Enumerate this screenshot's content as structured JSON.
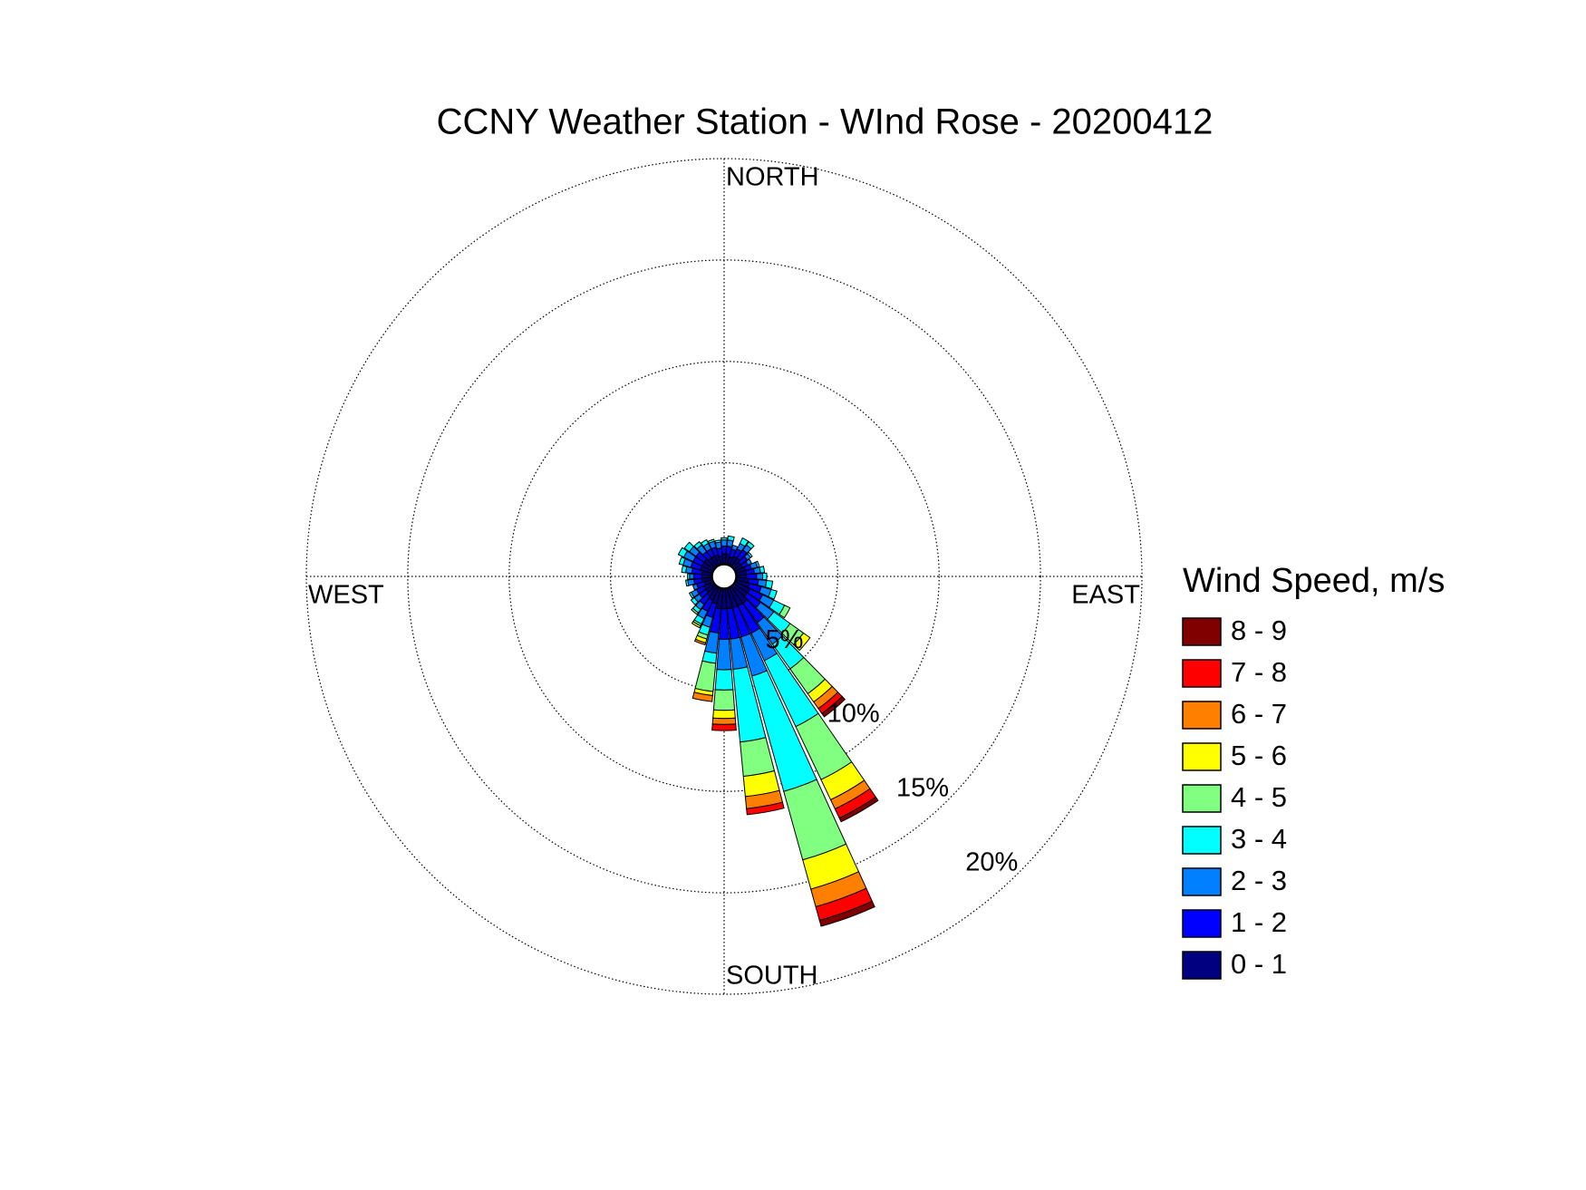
{
  "chart_data": {
    "type": "windrose",
    "title": "CCNY Weather Station - WInd Rose - 20200412",
    "direction_labels": [
      "NORTH",
      "EAST",
      "SOUTH",
      "WEST"
    ],
    "legend_title": "Wind Speed, m/s",
    "directions": [
      0,
      10,
      20,
      30,
      40,
      50,
      60,
      70,
      80,
      90,
      100,
      110,
      120,
      130,
      140,
      150,
      160,
      170,
      180,
      190,
      200,
      210,
      220,
      230,
      240,
      250,
      260,
      270,
      280,
      290,
      300,
      310,
      320,
      330,
      340,
      350
    ],
    "rlim": [
      0,
      20
    ],
    "rticks": [
      {
        "value": 5,
        "label": "5%"
      },
      {
        "value": 10,
        "label": "10%"
      },
      {
        "value": 15,
        "label": "15%"
      },
      {
        "value": 20,
        "label": "20%"
      }
    ],
    "series": [
      {
        "name": "0 - 1",
        "color": "#000080",
        "values": [
          0.5,
          0.5,
          0.4,
          0.5,
          0.5,
          0.4,
          0.4,
          0.5,
          0.5,
          0.5,
          0.6,
          0.7,
          0.8,
          0.8,
          1.0,
          1.0,
          1.0,
          1.0,
          1.0,
          1.0,
          0.8,
          0.7,
          0.6,
          0.5,
          0.5,
          0.4,
          0.5,
          0.5,
          0.5,
          0.6,
          0.6,
          0.6,
          0.5,
          0.5,
          0.5,
          0.4
        ]
      },
      {
        "name": "1 - 2",
        "color": "#0000ff",
        "values": [
          0.4,
          0.4,
          0.4,
          0.4,
          0.5,
          0.4,
          0.3,
          0.3,
          0.4,
          0.5,
          0.5,
          0.6,
          0.7,
          0.8,
          1.2,
          1.5,
          1.5,
          1.5,
          1.5,
          1.2,
          0.7,
          0.6,
          0.5,
          0.4,
          0.4,
          0.4,
          0.4,
          0.4,
          0.5,
          0.5,
          0.5,
          0.5,
          0.4,
          0.4,
          0.4,
          0.4
        ]
      },
      {
        "name": "2 - 3",
        "color": "#0080ff",
        "values": [
          0.3,
          0.3,
          0.2,
          0.3,
          0.3,
          0.2,
          0.2,
          0.3,
          0.3,
          0.3,
          0.4,
          0.5,
          0.6,
          0.8,
          1.3,
          1.5,
          2.0,
          1.5,
          1.5,
          1.0,
          0.5,
          0.4,
          0.3,
          0.3,
          0.3,
          0.2,
          0.3,
          0.2,
          0.3,
          0.4,
          0.5,
          0.4,
          0.4,
          0.3,
          0.3,
          0.3
        ]
      },
      {
        "name": "3 - 4",
        "color": "#00ffff",
        "values": [
          0.1,
          0.2,
          0,
          0.3,
          0.2,
          0.1,
          0,
          0.1,
          0.2,
          0.2,
          0.3,
          0.3,
          0.6,
          1.0,
          1.5,
          3.6,
          5.9,
          3.6,
          1.0,
          0.5,
          0.4,
          0.3,
          0.2,
          0.2,
          0.1,
          0,
          0.1,
          0.1,
          0.2,
          0.2,
          0.3,
          0.3,
          0.2,
          0.2,
          0.1,
          0.1
        ]
      },
      {
        "name": "4 - 5",
        "color": "#80ff80",
        "values": [
          0,
          0,
          0,
          0,
          0,
          0,
          0,
          0,
          0,
          0,
          0,
          0,
          0.3,
          0.8,
          1.5,
          2.9,
          3.5,
          1.7,
          1.0,
          1.4,
          0.2,
          0.1,
          0.1,
          0,
          0,
          0,
          0,
          0,
          0,
          0,
          0,
          0,
          0,
          0,
          0,
          0
        ]
      },
      {
        "name": "5 - 6",
        "color": "#ffff00",
        "values": [
          0,
          0,
          0,
          0,
          0,
          0,
          0,
          0,
          0,
          0,
          0,
          0,
          0,
          0.4,
          0.5,
          1.1,
          1.5,
          1.0,
          0.4,
          0.2,
          0.2,
          0.1,
          0,
          0,
          0,
          0,
          0,
          0,
          0,
          0,
          0,
          0,
          0,
          0,
          0,
          0
        ]
      },
      {
        "name": "6 - 7",
        "color": "#ff8000",
        "values": [
          0,
          0,
          0,
          0,
          0,
          0,
          0,
          0,
          0,
          0,
          0,
          0,
          0,
          0,
          0.4,
          0.5,
          0.9,
          0.6,
          0.3,
          0.3,
          0.1,
          0,
          0,
          0,
          0,
          0,
          0,
          0,
          0,
          0,
          0,
          0,
          0,
          0,
          0,
          0
        ]
      },
      {
        "name": "7 - 8",
        "color": "#ff0000",
        "values": [
          0,
          0,
          0,
          0,
          0,
          0,
          0,
          0,
          0,
          0,
          0,
          0,
          0,
          0,
          0.3,
          0.5,
          0.7,
          0.3,
          0.3,
          0,
          0,
          0,
          0,
          0,
          0,
          0,
          0,
          0,
          0,
          0,
          0,
          0,
          0,
          0,
          0,
          0
        ]
      },
      {
        "name": "8 - 9",
        "color": "#800000",
        "values": [
          0,
          0,
          0,
          0,
          0,
          0,
          0,
          0,
          0,
          0,
          0,
          0,
          0,
          0,
          0.2,
          0.2,
          0.3,
          0,
          0,
          0,
          0,
          0,
          0,
          0,
          0,
          0,
          0,
          0,
          0,
          0,
          0,
          0,
          0,
          0,
          0,
          0
        ]
      }
    ]
  }
}
